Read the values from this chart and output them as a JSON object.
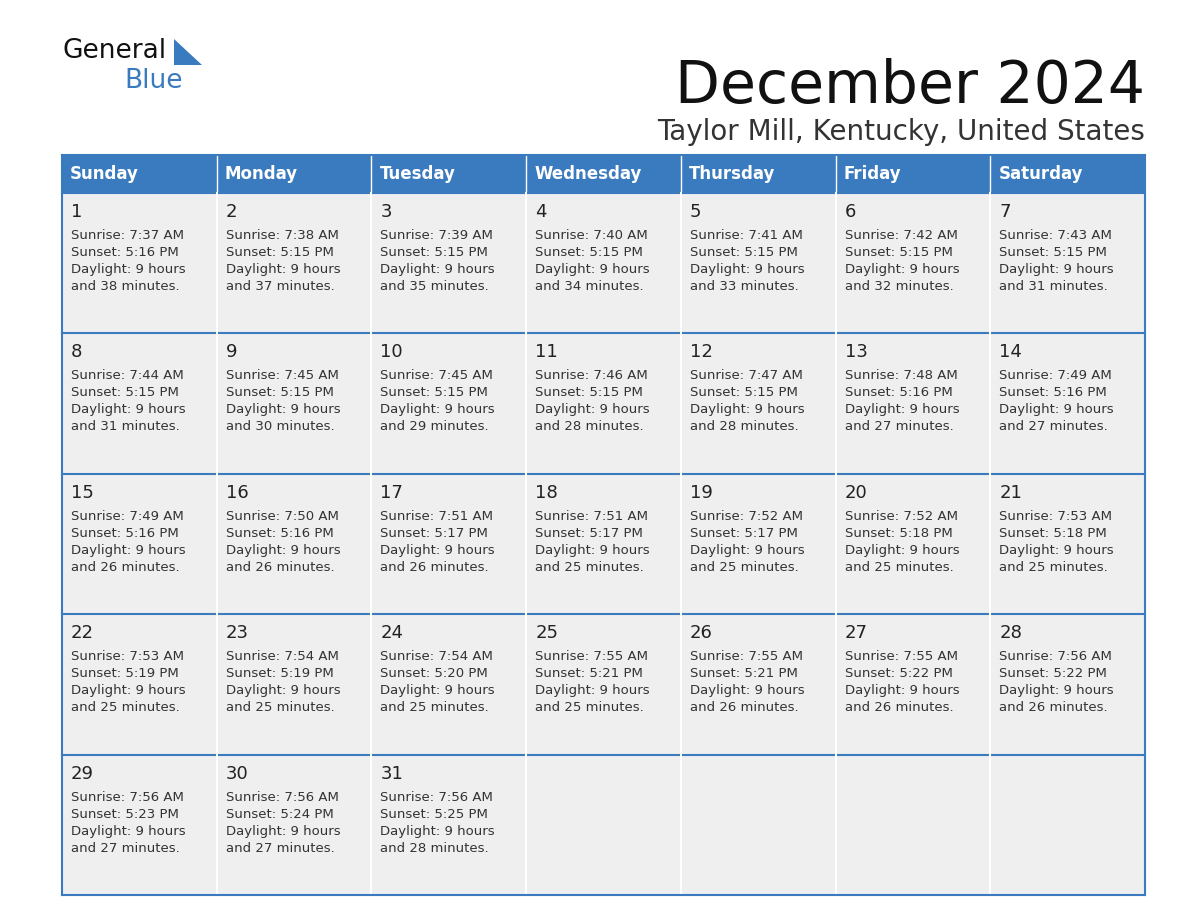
{
  "title": "December 2024",
  "subtitle": "Taylor Mill, Kentucky, United States",
  "header_color": "#3a7bbf",
  "header_text_color": "#ffffff",
  "cell_bg_color": "#efefef",
  "border_color": "#3a7bbf",
  "days_of_week": [
    "Sunday",
    "Monday",
    "Tuesday",
    "Wednesday",
    "Thursday",
    "Friday",
    "Saturday"
  ],
  "weeks": [
    [
      {
        "day": 1,
        "sunrise": "7:37 AM",
        "sunset": "5:16 PM",
        "daylight": "9 hours and 38 minutes."
      },
      {
        "day": 2,
        "sunrise": "7:38 AM",
        "sunset": "5:15 PM",
        "daylight": "9 hours and 37 minutes."
      },
      {
        "day": 3,
        "sunrise": "7:39 AM",
        "sunset": "5:15 PM",
        "daylight": "9 hours and 35 minutes."
      },
      {
        "day": 4,
        "sunrise": "7:40 AM",
        "sunset": "5:15 PM",
        "daylight": "9 hours and 34 minutes."
      },
      {
        "day": 5,
        "sunrise": "7:41 AM",
        "sunset": "5:15 PM",
        "daylight": "9 hours and 33 minutes."
      },
      {
        "day": 6,
        "sunrise": "7:42 AM",
        "sunset": "5:15 PM",
        "daylight": "9 hours and 32 minutes."
      },
      {
        "day": 7,
        "sunrise": "7:43 AM",
        "sunset": "5:15 PM",
        "daylight": "9 hours and 31 minutes."
      }
    ],
    [
      {
        "day": 8,
        "sunrise": "7:44 AM",
        "sunset": "5:15 PM",
        "daylight": "9 hours and 31 minutes."
      },
      {
        "day": 9,
        "sunrise": "7:45 AM",
        "sunset": "5:15 PM",
        "daylight": "9 hours and 30 minutes."
      },
      {
        "day": 10,
        "sunrise": "7:45 AM",
        "sunset": "5:15 PM",
        "daylight": "9 hours and 29 minutes."
      },
      {
        "day": 11,
        "sunrise": "7:46 AM",
        "sunset": "5:15 PM",
        "daylight": "9 hours and 28 minutes."
      },
      {
        "day": 12,
        "sunrise": "7:47 AM",
        "sunset": "5:15 PM",
        "daylight": "9 hours and 28 minutes."
      },
      {
        "day": 13,
        "sunrise": "7:48 AM",
        "sunset": "5:16 PM",
        "daylight": "9 hours and 27 minutes."
      },
      {
        "day": 14,
        "sunrise": "7:49 AM",
        "sunset": "5:16 PM",
        "daylight": "9 hours and 27 minutes."
      }
    ],
    [
      {
        "day": 15,
        "sunrise": "7:49 AM",
        "sunset": "5:16 PM",
        "daylight": "9 hours and 26 minutes."
      },
      {
        "day": 16,
        "sunrise": "7:50 AM",
        "sunset": "5:16 PM",
        "daylight": "9 hours and 26 minutes."
      },
      {
        "day": 17,
        "sunrise": "7:51 AM",
        "sunset": "5:17 PM",
        "daylight": "9 hours and 26 minutes."
      },
      {
        "day": 18,
        "sunrise": "7:51 AM",
        "sunset": "5:17 PM",
        "daylight": "9 hours and 25 minutes."
      },
      {
        "day": 19,
        "sunrise": "7:52 AM",
        "sunset": "5:17 PM",
        "daylight": "9 hours and 25 minutes."
      },
      {
        "day": 20,
        "sunrise": "7:52 AM",
        "sunset": "5:18 PM",
        "daylight": "9 hours and 25 minutes."
      },
      {
        "day": 21,
        "sunrise": "7:53 AM",
        "sunset": "5:18 PM",
        "daylight": "9 hours and 25 minutes."
      }
    ],
    [
      {
        "day": 22,
        "sunrise": "7:53 AM",
        "sunset": "5:19 PM",
        "daylight": "9 hours and 25 minutes."
      },
      {
        "day": 23,
        "sunrise": "7:54 AM",
        "sunset": "5:19 PM",
        "daylight": "9 hours and 25 minutes."
      },
      {
        "day": 24,
        "sunrise": "7:54 AM",
        "sunset": "5:20 PM",
        "daylight": "9 hours and 25 minutes."
      },
      {
        "day": 25,
        "sunrise": "7:55 AM",
        "sunset": "5:21 PM",
        "daylight": "9 hours and 25 minutes."
      },
      {
        "day": 26,
        "sunrise": "7:55 AM",
        "sunset": "5:21 PM",
        "daylight": "9 hours and 26 minutes."
      },
      {
        "day": 27,
        "sunrise": "7:55 AM",
        "sunset": "5:22 PM",
        "daylight": "9 hours and 26 minutes."
      },
      {
        "day": 28,
        "sunrise": "7:56 AM",
        "sunset": "5:22 PM",
        "daylight": "9 hours and 26 minutes."
      }
    ],
    [
      {
        "day": 29,
        "sunrise": "7:56 AM",
        "sunset": "5:23 PM",
        "daylight": "9 hours and 27 minutes."
      },
      {
        "day": 30,
        "sunrise": "7:56 AM",
        "sunset": "5:24 PM",
        "daylight": "9 hours and 27 minutes."
      },
      {
        "day": 31,
        "sunrise": "7:56 AM",
        "sunset": "5:25 PM",
        "daylight": "9 hours and 28 minutes."
      },
      null,
      null,
      null,
      null
    ]
  ]
}
